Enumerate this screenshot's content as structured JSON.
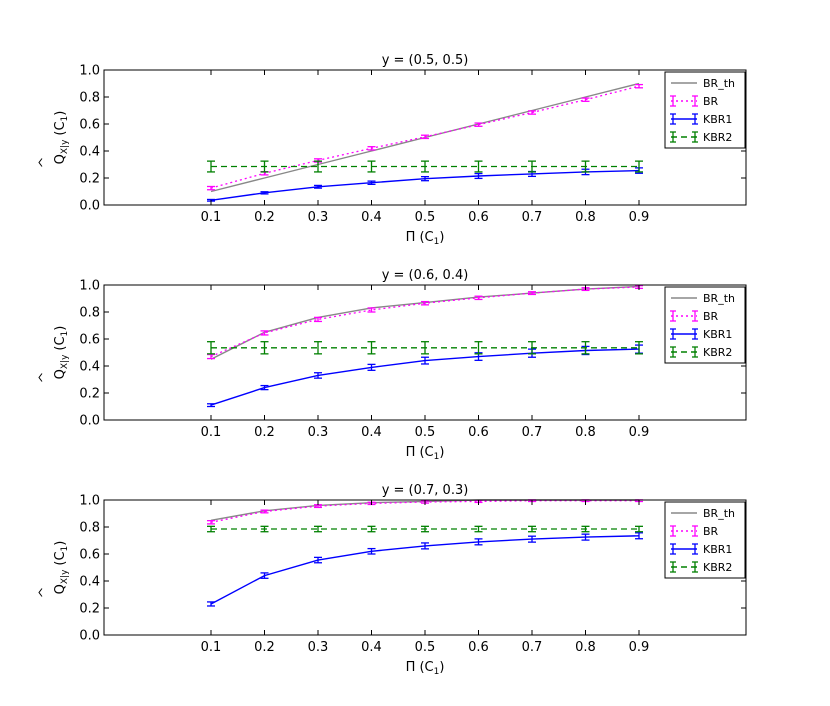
{
  "chart_data": [
    {
      "type": "line",
      "title": "y = (0.5, 0.5)",
      "xlabel": "Π (C",
      "xlabel_sub": "1",
      "xlabel_close": ")",
      "ylabel_main": "Q",
      "ylabel_sub": "X|y",
      "ylabel_arg": "(C",
      "ylabel_arg_sub": "1",
      "ylabel_close": ")",
      "xlim": [
        -0.1,
        1.1
      ],
      "ylim": [
        0.0,
        1.0
      ],
      "x": [
        0.1,
        0.2,
        0.3,
        0.4,
        0.5,
        0.6,
        0.7,
        0.8,
        0.9
      ],
      "x_tick_labels": [
        "0.1",
        "0.2",
        "0.3",
        "0.4",
        "0.5",
        "0.6",
        "0.7",
        "0.8",
        "0.9"
      ],
      "y_ticks": [
        0.0,
        0.2,
        0.4,
        0.6,
        0.8,
        1.0
      ],
      "y_tick_labels": [
        "0.0",
        "0.2",
        "0.4",
        "0.6",
        "0.8",
        "1.0"
      ],
      "legend_position": "right",
      "series": [
        {
          "name": "BR_th",
          "style": "solid",
          "color": "#888888",
          "errorbars": false,
          "values": [
            0.1,
            0.2,
            0.3,
            0.4,
            0.5,
            0.6,
            0.7,
            0.8,
            0.9
          ],
          "errors": []
        },
        {
          "name": "BR",
          "style": "dotted",
          "color": "#ff00ff",
          "errorbars": true,
          "values": [
            0.125,
            0.235,
            0.33,
            0.42,
            0.505,
            0.595,
            0.685,
            0.78,
            0.88
          ],
          "errors": [
            0.012,
            0.012,
            0.012,
            0.012,
            0.012,
            0.012,
            0.012,
            0.012,
            0.012
          ]
        },
        {
          "name": "KBR1",
          "style": "solid",
          "color": "#0000ff",
          "errorbars": true,
          "values": [
            0.035,
            0.09,
            0.135,
            0.165,
            0.195,
            0.215,
            0.23,
            0.245,
            0.255
          ],
          "errors": [
            0.006,
            0.008,
            0.01,
            0.012,
            0.015,
            0.018,
            0.018,
            0.02,
            0.02
          ]
        },
        {
          "name": "KBR2",
          "style": "dashed",
          "color": "#008000",
          "errorbars": true,
          "values": [
            0.285,
            0.285,
            0.285,
            0.285,
            0.285,
            0.285,
            0.285,
            0.285,
            0.285
          ],
          "errors": [
            0.04,
            0.04,
            0.04,
            0.04,
            0.04,
            0.04,
            0.04,
            0.04,
            0.04
          ]
        }
      ]
    },
    {
      "type": "line",
      "title": "y = (0.6, 0.4)",
      "xlabel": "Π (C",
      "xlabel_sub": "1",
      "xlabel_close": ")",
      "ylabel_main": "Q",
      "ylabel_sub": "X|y",
      "ylabel_arg": "(C",
      "ylabel_arg_sub": "1",
      "ylabel_close": ")",
      "xlim": [
        -0.1,
        1.1
      ],
      "ylim": [
        0.0,
        1.0
      ],
      "x": [
        0.1,
        0.2,
        0.3,
        0.4,
        0.5,
        0.6,
        0.7,
        0.8,
        0.9
      ],
      "x_tick_labels": [
        "0.1",
        "0.2",
        "0.3",
        "0.4",
        "0.5",
        "0.6",
        "0.7",
        "0.8",
        "0.9"
      ],
      "y_ticks": [
        0.0,
        0.2,
        0.4,
        0.6,
        0.8,
        1.0
      ],
      "y_tick_labels": [
        "0.0",
        "0.2",
        "0.4",
        "0.6",
        "0.8",
        "1.0"
      ],
      "legend_position": "right",
      "series": [
        {
          "name": "BR_th",
          "style": "solid",
          "color": "#888888",
          "errorbars": false,
          "values": [
            0.45,
            0.65,
            0.76,
            0.83,
            0.87,
            0.91,
            0.94,
            0.97,
            0.99
          ],
          "errors": []
        },
        {
          "name": "BR",
          "style": "dotted",
          "color": "#ff00ff",
          "errorbars": true,
          "values": [
            0.47,
            0.645,
            0.745,
            0.815,
            0.865,
            0.905,
            0.94,
            0.97,
            0.985
          ],
          "errors": [
            0.015,
            0.015,
            0.015,
            0.015,
            0.012,
            0.012,
            0.01,
            0.01,
            0.01
          ]
        },
        {
          "name": "KBR1",
          "style": "solid",
          "color": "#0000ff",
          "errorbars": true,
          "values": [
            0.11,
            0.24,
            0.33,
            0.39,
            0.44,
            0.47,
            0.495,
            0.515,
            0.525
          ],
          "errors": [
            0.01,
            0.015,
            0.02,
            0.022,
            0.025,
            0.028,
            0.03,
            0.03,
            0.03
          ]
        },
        {
          "name": "KBR2",
          "style": "dashed",
          "color": "#008000",
          "errorbars": true,
          "values": [
            0.535,
            0.535,
            0.535,
            0.535,
            0.535,
            0.535,
            0.535,
            0.535,
            0.535
          ],
          "errors": [
            0.045,
            0.045,
            0.045,
            0.045,
            0.045,
            0.045,
            0.045,
            0.045,
            0.045
          ]
        }
      ]
    },
    {
      "type": "line",
      "title": "y = (0.7, 0.3)",
      "xlabel": "Π (C",
      "xlabel_sub": "1",
      "xlabel_close": ")",
      "ylabel_main": "Q",
      "ylabel_sub": "X|y",
      "ylabel_arg": "(C",
      "ylabel_arg_sub": "1",
      "ylabel_close": ")",
      "xlim": [
        -0.1,
        1.1
      ],
      "ylim": [
        0.0,
        1.0
      ],
      "x": [
        0.1,
        0.2,
        0.3,
        0.4,
        0.5,
        0.6,
        0.7,
        0.8,
        0.9
      ],
      "x_tick_labels": [
        "0.1",
        "0.2",
        "0.3",
        "0.4",
        "0.5",
        "0.6",
        "0.7",
        "0.8",
        "0.9"
      ],
      "y_ticks": [
        0.0,
        0.2,
        0.4,
        0.6,
        0.8,
        1.0
      ],
      "y_tick_labels": [
        "0.0",
        "0.2",
        "0.4",
        "0.6",
        "0.8",
        "1.0"
      ],
      "legend_position": "right",
      "series": [
        {
          "name": "BR_th",
          "style": "solid",
          "color": "#888888",
          "errorbars": false,
          "values": [
            0.85,
            0.92,
            0.96,
            0.98,
            0.99,
            1.0,
            1.0,
            1.0,
            1.0
          ],
          "errors": []
        },
        {
          "name": "BR",
          "style": "dotted",
          "color": "#ff00ff",
          "errorbars": true,
          "values": [
            0.835,
            0.915,
            0.955,
            0.975,
            0.985,
            0.99,
            0.995,
            0.995,
            0.995
          ],
          "errors": [
            0.012,
            0.01,
            0.01,
            0.008,
            0.008,
            0.008,
            0.006,
            0.006,
            0.006
          ]
        },
        {
          "name": "KBR1",
          "style": "solid",
          "color": "#0000ff",
          "errorbars": true,
          "values": [
            0.23,
            0.44,
            0.555,
            0.62,
            0.66,
            0.69,
            0.71,
            0.725,
            0.735
          ],
          "errors": [
            0.015,
            0.02,
            0.02,
            0.02,
            0.022,
            0.022,
            0.022,
            0.022,
            0.022
          ]
        },
        {
          "name": "KBR2",
          "style": "dashed",
          "color": "#008000",
          "errorbars": true,
          "values": [
            0.785,
            0.785,
            0.785,
            0.785,
            0.785,
            0.785,
            0.785,
            0.785,
            0.785
          ],
          "errors": [
            0.02,
            0.02,
            0.02,
            0.02,
            0.02,
            0.02,
            0.02,
            0.02,
            0.02
          ]
        }
      ]
    }
  ]
}
